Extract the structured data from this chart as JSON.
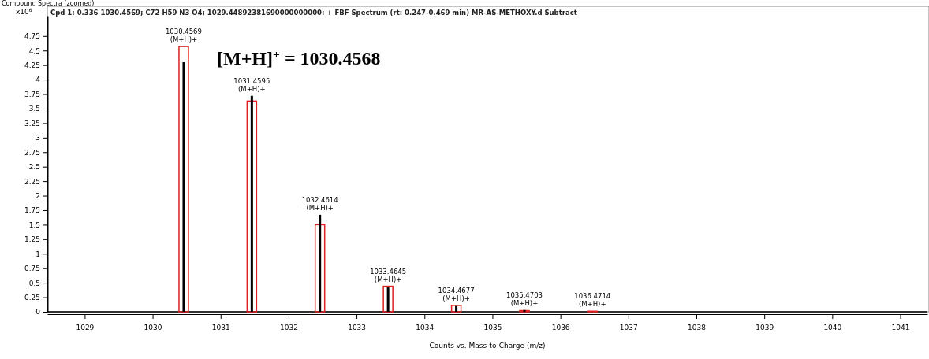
{
  "chart_data": {
    "type": "bar",
    "title": "Cpd 1: 0.336 1030.4569; C72 H59 N3 O4; 1029.44892381690000000000: + FBF Spectrum (rt: 0.247-0.469 min) MR-AS-METHOXY.d  Subtract",
    "subtitle": "Compound Spectra (zoomed)",
    "xlabel": "Counts vs. Mass-to-Charge (m/z)",
    "ylabel": "x10$^{6}$",
    "xlim": [
      1028.45,
      1041.4
    ],
    "xticks": [
      1029,
      1030,
      1031,
      1032,
      1033,
      1034,
      1035,
      1036,
      1037,
      1038,
      1039,
      1040,
      1041
    ],
    "ylim": [
      0,
      5.1
    ],
    "yticks": [
      0,
      0.25,
      0.5,
      0.75,
      1,
      1.25,
      1.5,
      1.75,
      2,
      2.25,
      2.5,
      2.75,
      3,
      3.25,
      3.5,
      3.75,
      4,
      4.25,
      {
        "value": 4.5,
        "label": "4.5"
      },
      4.75
    ],
    "grid": false,
    "series": [
      {
        "color": "#e02020",
        "x": [
          1030.4569,
          1031.4595,
          1032.4614,
          1033.4645,
          1034.4677,
          1035.4703,
          1036.4714
        ],
        "values": [
          4.57,
          3.63,
          1.5,
          0.44,
          0.11,
          0.02,
          0.01
        ]
      },
      {
        "color": "#000000",
        "x": [
          1030.4569,
          1031.4595,
          1032.4614,
          1033.4645,
          1034.4677,
          1035.4703
        ],
        "values": [
          4.3,
          3.72,
          1.67,
          0.42,
          0.1,
          0.03
        ]
      }
    ],
    "annotations": [
      {
        "text": "1030.4569\n(M+H)+",
        "x": 1030.4569,
        "y": 4.57
      },
      {
        "text": "1031.4595\n(M+H)+",
        "x": 1031.4595,
        "y": 3.72
      },
      {
        "text": "1032.4614\n(M+H)+",
        "x": 1032.4614,
        "y": 1.67
      },
      {
        "text": "1033.4645\n(M+H)+",
        "x": 1033.4645,
        "y": 0.44
      },
      {
        "text": "1034.4677\n(M+H)+",
        "x": 1034.4677,
        "y": 0.11
      },
      {
        "text": "1035.4703\n(M+H)+",
        "x": 1035.4703,
        "y": 0.03
      },
      {
        "text": "1036.4714\n(M+H)+",
        "x": 1036.4714,
        "y": 0.01
      },
      "[M+H]$^{+}$ = 1030.4568"
    ]
  }
}
